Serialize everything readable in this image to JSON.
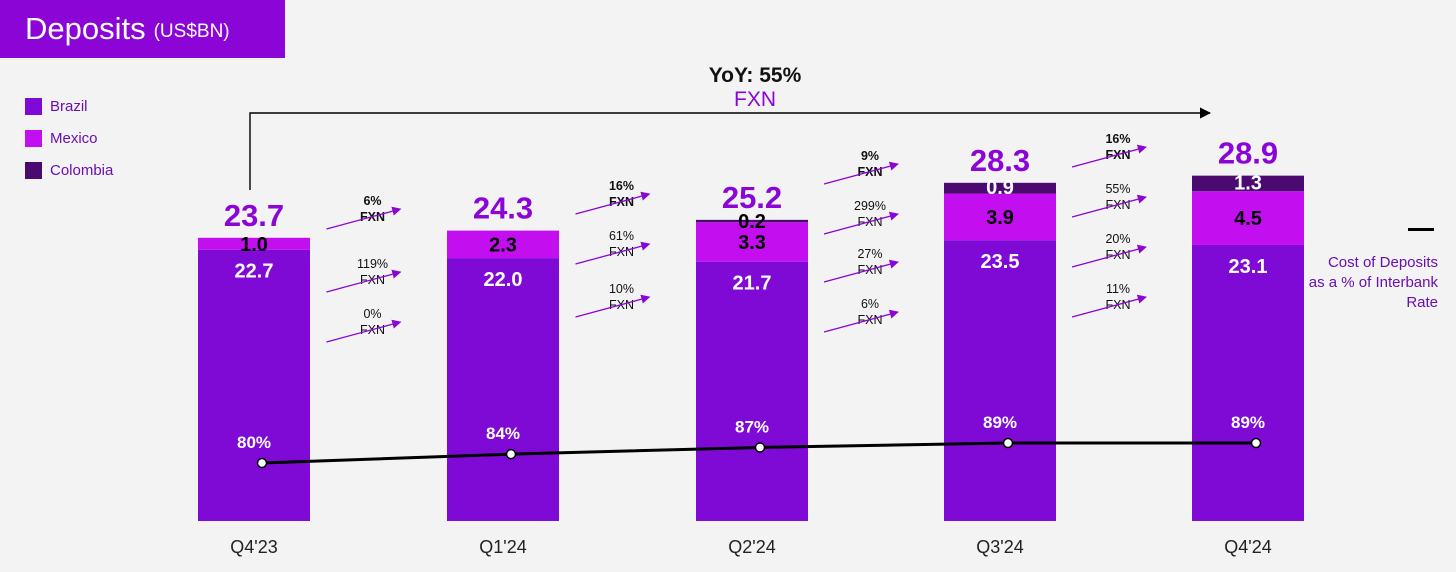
{
  "title": {
    "main": "Deposits",
    "unit": "(US$BN)"
  },
  "colors": {
    "brazil": "#7f0ad6",
    "mexico": "#c30ef0",
    "colombia": "#4b0a70",
    "title_bg": "#8a05d6",
    "accent": "#8a05d6",
    "line": "#000000"
  },
  "yoy": {
    "label": "YoY: 55%",
    "sub": "FXN"
  },
  "line_legend": "Cost of Deposits as a % of Interbank Rate",
  "chart_data": {
    "type": "bar",
    "stacked": true,
    "categories": [
      "Q4'23",
      "Q1'24",
      "Q2'24",
      "Q3'24",
      "Q4'24"
    ],
    "series": [
      {
        "name": "Brazil",
        "values": [
          22.7,
          22.0,
          21.7,
          23.5,
          23.1
        ]
      },
      {
        "name": "Mexico",
        "values": [
          1.0,
          2.3,
          3.3,
          3.9,
          4.5
        ]
      },
      {
        "name": "Colombia",
        "values": [
          0,
          0,
          0.2,
          0.9,
          1.3
        ]
      }
    ],
    "totals": [
      "23.7",
      "24.3",
      "25.2",
      "28.3",
      "28.9"
    ],
    "segment_labels": [
      [
        "22.7",
        "1.0",
        ""
      ],
      [
        "22.0",
        "2.3",
        ""
      ],
      [
        "21.7",
        "3.3",
        "0.2"
      ],
      [
        "23.5",
        "3.9",
        "0.9"
      ],
      [
        "23.1",
        "4.5",
        "1.3"
      ]
    ],
    "line_series": {
      "name": "Cost of Deposits as a % of Interbank Rate",
      "values": [
        80,
        84,
        87,
        89,
        89
      ],
      "labels": [
        "80%",
        "84%",
        "87%",
        "89%",
        "89%"
      ]
    },
    "growth_annotations": [
      {
        "colombia": "",
        "mexico": "6%\nFXN",
        "brazil_mid": "119%\nFXN",
        "brazil": "0%\nFXN"
      },
      {
        "colombia": "",
        "mexico": "16%\nFXN",
        "brazil_mid": "61%\nFXN",
        "brazil": "10%\nFXN"
      },
      {
        "colombia": "9%\nFXN",
        "mexico": "299%\nFXN",
        "brazil_mid": "27%\nFXN",
        "brazil": "6%\nFXN"
      },
      {
        "colombia": "16%\nFXN",
        "mexico": "55%\nFXN",
        "brazil_mid": "20%\nFXN",
        "brazil": "11%\nFXN"
      }
    ],
    "legend_position": "top-left",
    "ylim": [
      0,
      30
    ]
  }
}
